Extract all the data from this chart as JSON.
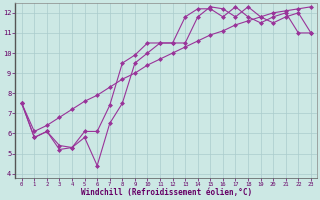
{
  "xlabel": "Windchill (Refroidissement éolien,°C)",
  "background_color": "#cce8e4",
  "grid_color": "#aacccc",
  "line_color": "#993399",
  "xlim": [
    -0.5,
    23.5
  ],
  "ylim": [
    3.8,
    12.5
  ],
  "xticks": [
    0,
    1,
    2,
    3,
    4,
    5,
    6,
    7,
    8,
    9,
    10,
    11,
    12,
    13,
    14,
    15,
    16,
    17,
    18,
    19,
    20,
    21,
    22,
    23
  ],
  "yticks": [
    4,
    5,
    6,
    7,
    8,
    9,
    10,
    11,
    12
  ],
  "hours": [
    0,
    1,
    2,
    3,
    4,
    5,
    6,
    7,
    8,
    9,
    10,
    11,
    12,
    13,
    14,
    15,
    16,
    17,
    18,
    19,
    20,
    21,
    22,
    23
  ],
  "line1": [
    7.5,
    5.8,
    6.1,
    5.2,
    5.3,
    5.8,
    4.4,
    6.5,
    7.5,
    9.5,
    10.0,
    10.5,
    10.5,
    10.5,
    11.8,
    12.3,
    12.2,
    11.8,
    12.3,
    11.8,
    11.5,
    11.8,
    12.0,
    11.0
  ],
  "line2": [
    7.5,
    5.8,
    6.1,
    5.4,
    5.3,
    6.1,
    6.1,
    7.4,
    9.5,
    9.9,
    10.5,
    10.5,
    10.5,
    11.8,
    12.2,
    12.2,
    11.8,
    12.3,
    11.8,
    11.5,
    11.8,
    12.0,
    11.0,
    11.0
  ],
  "line3": [
    7.5,
    6.1,
    6.4,
    6.8,
    7.2,
    7.6,
    7.9,
    8.3,
    8.7,
    9.0,
    9.4,
    9.7,
    10.0,
    10.3,
    10.6,
    10.9,
    11.1,
    11.4,
    11.6,
    11.8,
    12.0,
    12.1,
    12.2,
    12.3
  ]
}
